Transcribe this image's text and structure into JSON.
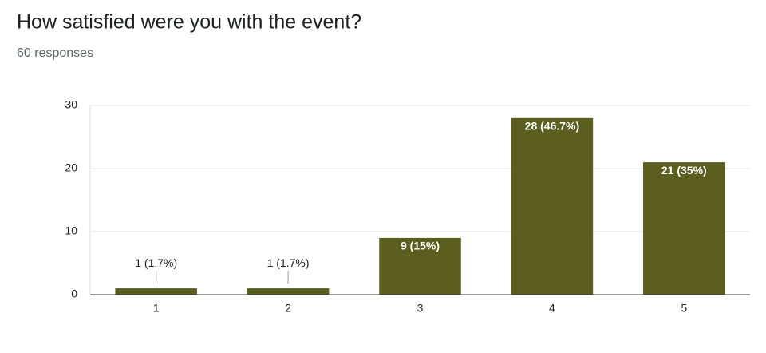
{
  "chart_data": {
    "type": "bar",
    "title": "How satisfied were you with the event?",
    "subtitle": "60 responses",
    "categories": [
      "1",
      "2",
      "3",
      "4",
      "5"
    ],
    "values": [
      1,
      1,
      9,
      28,
      21
    ],
    "value_labels": [
      "1 (1.7%)",
      "1 (1.7%)",
      "9 (15%)",
      "28 (46.7%)",
      "21 (35%)"
    ],
    "color": "#5a5f1f",
    "ylim": [
      0,
      30
    ],
    "yticks": [
      0,
      10,
      20,
      30
    ],
    "grid": true
  }
}
